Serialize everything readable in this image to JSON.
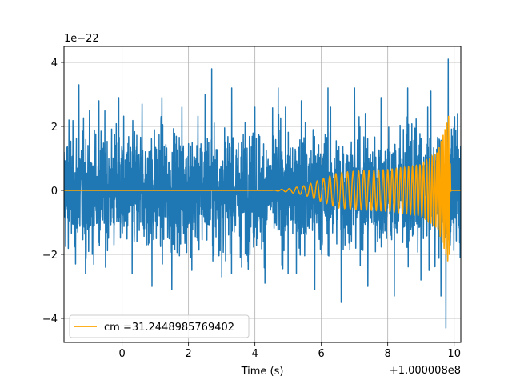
{
  "chart_data": {
    "type": "line",
    "title": "",
    "xlabel": "Time (s)",
    "ylabel": "",
    "x_offset_label": "+1.000008e8",
    "y_scale_label": "1e−22",
    "xlim": [
      -1.75,
      10.2
    ],
    "ylim": [
      -4.75,
      4.5
    ],
    "x_ticks": [
      0,
      2,
      4,
      6,
      8,
      10
    ],
    "y_ticks": [
      -4,
      -2,
      0,
      2,
      4
    ],
    "y_tick_labels": [
      "−4",
      "−2",
      "0",
      "2",
      "4"
    ],
    "grid": true,
    "legend_position": "lower-left",
    "series": [
      {
        "color": "#1f77b4",
        "description": "noisy strain data",
        "x_range": [
          -1.75,
          10.2
        ],
        "typical_amplitude": 1.7,
        "peaks": [
          {
            "x": -1.6,
            "y": 2.2
          },
          {
            "x": -1.4,
            "y": -2.3
          },
          {
            "x": -1.1,
            "y": 2.4
          },
          {
            "x": -0.9,
            "y": -2.0
          },
          {
            "x": -1.3,
            "y": 3.3
          },
          {
            "x": -1.1,
            "y": -2.6
          },
          {
            "x": -0.7,
            "y": 2.8
          },
          {
            "x": -0.5,
            "y": -2.4
          },
          {
            "x": -0.1,
            "y": 2.9
          },
          {
            "x": 0.3,
            "y": -2.6
          },
          {
            "x": 0.6,
            "y": 2.7
          },
          {
            "x": 0.9,
            "y": -3.0
          },
          {
            "x": 1.2,
            "y": 2.9
          },
          {
            "x": 1.5,
            "y": -3.1
          },
          {
            "x": 1.8,
            "y": 2.6
          },
          {
            "x": 2.1,
            "y": -2.5
          },
          {
            "x": 2.5,
            "y": 3.0
          },
          {
            "x": 2.7,
            "y": 3.8
          },
          {
            "x": 3.0,
            "y": -2.7
          },
          {
            "x": 3.3,
            "y": 3.2
          },
          {
            "x": 3.6,
            "y": -2.4
          },
          {
            "x": 4.0,
            "y": 2.6
          },
          {
            "x": 4.3,
            "y": -2.9
          },
          {
            "x": 4.7,
            "y": 3.2
          },
          {
            "x": 5.0,
            "y": -2.6
          },
          {
            "x": 5.4,
            "y": 2.8
          },
          {
            "x": 5.8,
            "y": -3.1
          },
          {
            "x": 6.2,
            "y": 3.2
          },
          {
            "x": 6.6,
            "y": -3.5
          },
          {
            "x": 7.0,
            "y": 3.2
          },
          {
            "x": 7.4,
            "y": -3.0
          },
          {
            "x": 7.8,
            "y": 2.9
          },
          {
            "x": 8.2,
            "y": -3.3
          },
          {
            "x": 8.6,
            "y": 3.2
          },
          {
            "x": 9.0,
            "y": -2.8
          },
          {
            "x": 9.3,
            "y": 3.1
          },
          {
            "x": 9.6,
            "y": -3.3
          },
          {
            "x": 9.75,
            "y": -4.3
          },
          {
            "x": 9.82,
            "y": 4.1
          },
          {
            "x": 10.1,
            "y": 2.4
          }
        ]
      },
      {
        "name": "cm =31.2448985769402",
        "color": "#ffa500",
        "description": "chirp template",
        "envelope": [
          {
            "x": -1.75,
            "a": 0.0
          },
          {
            "x": 4.5,
            "a": 0.0
          },
          {
            "x": 5.0,
            "a": 0.05
          },
          {
            "x": 5.5,
            "a": 0.15
          },
          {
            "x": 6.0,
            "a": 0.35
          },
          {
            "x": 6.5,
            "a": 0.55
          },
          {
            "x": 7.0,
            "a": 0.6
          },
          {
            "x": 8.0,
            "a": 0.65
          },
          {
            "x": 9.0,
            "a": 0.8
          },
          {
            "x": 9.5,
            "a": 1.2
          },
          {
            "x": 9.75,
            "a": 2.0
          },
          {
            "x": 9.85,
            "a": 2.4
          },
          {
            "x": 9.9,
            "a": 0.0
          },
          {
            "x": 10.2,
            "a": 0.0
          }
        ],
        "osc_frequency": [
          {
            "x": 4.5,
            "f": 4
          },
          {
            "x": 7.0,
            "f": 6
          },
          {
            "x": 9.0,
            "f": 9
          },
          {
            "x": 9.9,
            "f": 20
          }
        ]
      }
    ]
  }
}
